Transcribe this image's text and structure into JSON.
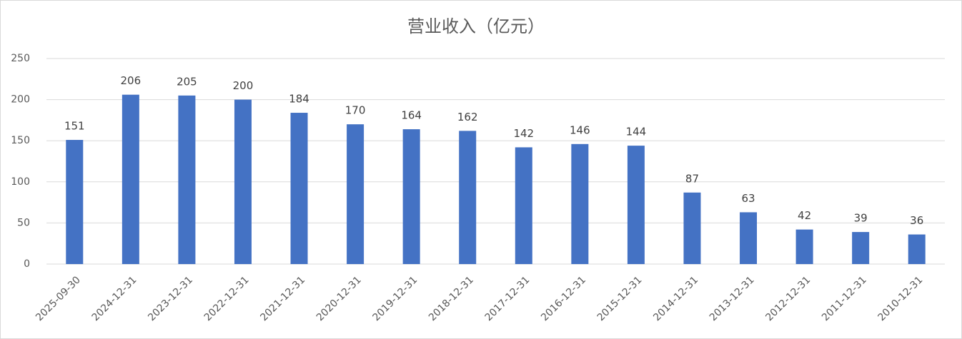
{
  "chart_data": {
    "type": "bar",
    "title": "营业收入（亿元）",
    "categories": [
      "2025-09-30",
      "2024-12-31",
      "2023-12-31",
      "2022-12-31",
      "2021-12-31",
      "2020-12-31",
      "2019-12-31",
      "2018-12-31",
      "2017-12-31",
      "2016-12-31",
      "2015-12-31",
      "2014-12-31",
      "2013-12-31",
      "2012-12-31",
      "2011-12-31",
      "2010-12-31"
    ],
    "values": [
      151,
      206,
      205,
      200,
      184,
      170,
      164,
      162,
      142,
      146,
      144,
      87,
      63,
      42,
      39,
      36
    ],
    "color": "#4472c4",
    "ylim": [
      0,
      250
    ],
    "yticks": [
      0,
      50,
      100,
      150,
      200,
      250
    ],
    "grid": true
  }
}
